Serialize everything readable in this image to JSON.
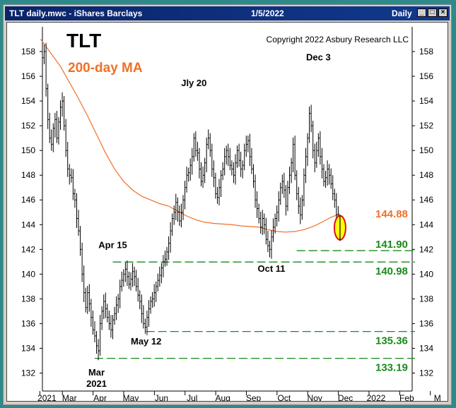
{
  "window": {
    "title_left": "TLT daily.mwc - iShares Barclays",
    "title_date": "1/5/2022",
    "title_period": "Daily",
    "buttons": [
      "_",
      "□",
      "×"
    ]
  },
  "chart_data": {
    "type": "line",
    "title": "TLT",
    "subtitle": "200-day MA",
    "copyright": "Copyright 2022 Asbury Research LLC",
    "ylim": [
      131,
      160
    ],
    "yticks": [
      132,
      134,
      136,
      138,
      140,
      142,
      144,
      146,
      148,
      150,
      152,
      154,
      156,
      158
    ],
    "xticks": [
      "2021",
      "Mar",
      "Apr",
      "May",
      "Jun",
      "Jul",
      "Aug",
      "Sep",
      "Oct",
      "Nov",
      "Dec",
      "2022",
      "Feb",
      "M"
    ],
    "colors": {
      "price": "#000000",
      "ma": "#f07028",
      "support": "#1a8a1a",
      "ma_label": "#f07028",
      "highlight_fill": "#ffff00",
      "highlight_stroke": "#e01010"
    },
    "price_series": [
      [
        0,
        157.5
      ],
      [
        2,
        158
      ],
      [
        4,
        155
      ],
      [
        6,
        152.5
      ],
      [
        8,
        151
      ],
      [
        10,
        150.5
      ],
      [
        12,
        151.8
      ],
      [
        14,
        152.5
      ],
      [
        16,
        151
      ],
      [
        18,
        152.3
      ],
      [
        20,
        153.5
      ],
      [
        22,
        154
      ],
      [
        24,
        152
      ],
      [
        26,
        150
      ],
      [
        28,
        148.5
      ],
      [
        30,
        148
      ],
      [
        32,
        147.8
      ],
      [
        34,
        146.5
      ],
      [
        36,
        146
      ],
      [
        38,
        144.5
      ],
      [
        40,
        143.5
      ],
      [
        42,
        142
      ],
      [
        44,
        140
      ],
      [
        46,
        138.5
      ],
      [
        48,
        137.3
      ],
      [
        50,
        138.5
      ],
      [
        52,
        137.6
      ],
      [
        54,
        136.5
      ],
      [
        56,
        135.5
      ],
      [
        58,
        135
      ],
      [
        60,
        134.2
      ],
      [
        62,
        133.8
      ],
      [
        64,
        136
      ],
      [
        66,
        137
      ],
      [
        68,
        137.8
      ],
      [
        70,
        137.2
      ],
      [
        72,
        136.5
      ],
      [
        74,
        136
      ],
      [
        76,
        135.5
      ],
      [
        78,
        136.3
      ],
      [
        80,
        136.8
      ],
      [
        82,
        137.5
      ],
      [
        84,
        138
      ],
      [
        86,
        139
      ],
      [
        88,
        139.5
      ],
      [
        90,
        140
      ],
      [
        92,
        140.4
      ],
      [
        94,
        139.8
      ],
      [
        96,
        139.2
      ],
      [
        98,
        139.6
      ],
      [
        100,
        140.2
      ],
      [
        102,
        139.8
      ],
      [
        104,
        139
      ],
      [
        106,
        138.3
      ],
      [
        108,
        137.8
      ],
      [
        110,
        136.8
      ],
      [
        112,
        136
      ],
      [
        114,
        135.7
      ],
      [
        116,
        136.5
      ],
      [
        118,
        137.2
      ],
      [
        120,
        137.8
      ],
      [
        122,
        138
      ],
      [
        124,
        138.5
      ],
      [
        126,
        139
      ],
      [
        128,
        139.5
      ],
      [
        130,
        139.9
      ],
      [
        132,
        140.5
      ],
      [
        134,
        141
      ],
      [
        136,
        141.2
      ],
      [
        138,
        141.8
      ],
      [
        140,
        142.5
      ],
      [
        142,
        143.5
      ],
      [
        144,
        144.5
      ],
      [
        146,
        145
      ],
      [
        148,
        145.8
      ],
      [
        150,
        145
      ],
      [
        152,
        144.3
      ],
      [
        154,
        145
      ],
      [
        156,
        146
      ],
      [
        158,
        147
      ],
      [
        160,
        148
      ],
      [
        162,
        148.2
      ],
      [
        164,
        148.8
      ],
      [
        166,
        149.5
      ],
      [
        168,
        151
      ],
      [
        170,
        150
      ],
      [
        172,
        149.8
      ],
      [
        174,
        148.5
      ],
      [
        176,
        147.5
      ],
      [
        178,
        148
      ],
      [
        180,
        149
      ],
      [
        182,
        150.5
      ],
      [
        184,
        151
      ],
      [
        186,
        150
      ],
      [
        188,
        148.5
      ],
      [
        190,
        147.8
      ],
      [
        192,
        146.5
      ],
      [
        194,
        146.2
      ],
      [
        196,
        147
      ],
      [
        198,
        148
      ],
      [
        200,
        148.5
      ],
      [
        202,
        149.5
      ],
      [
        204,
        150
      ],
      [
        206,
        149.5
      ],
      [
        208,
        148.8
      ],
      [
        210,
        148.5
      ],
      [
        212,
        148
      ],
      [
        214,
        149
      ],
      [
        216,
        150
      ],
      [
        218,
        149.2
      ],
      [
        220,
        148.5
      ],
      [
        222,
        148.8
      ],
      [
        224,
        150
      ],
      [
        226,
        150.5
      ],
      [
        228,
        150.8
      ],
      [
        230,
        149.5
      ],
      [
        232,
        148.5
      ],
      [
        234,
        147.5
      ],
      [
        236,
        146
      ],
      [
        238,
        145.3
      ],
      [
        240,
        144.5
      ],
      [
        242,
        143.8
      ],
      [
        244,
        144.5
      ],
      [
        246,
        144
      ],
      [
        248,
        142.8
      ],
      [
        250,
        142.3
      ],
      [
        252,
        142
      ],
      [
        254,
        143
      ],
      [
        256,
        143.8
      ],
      [
        258,
        144.5
      ],
      [
        260,
        145
      ],
      [
        262,
        146
      ],
      [
        264,
        147
      ],
      [
        266,
        147.5
      ],
      [
        268,
        146.8
      ],
      [
        270,
        145.5
      ],
      [
        272,
        147
      ],
      [
        274,
        148
      ],
      [
        276,
        149
      ],
      [
        278,
        150.5
      ],
      [
        280,
        148
      ],
      [
        282,
        146.5
      ],
      [
        284,
        145.5
      ],
      [
        286,
        144.8
      ],
      [
        288,
        146
      ],
      [
        290,
        148
      ],
      [
        292,
        149.5
      ],
      [
        294,
        151
      ],
      [
        296,
        153
      ],
      [
        298,
        152
      ],
      [
        300,
        150
      ],
      [
        302,
        149
      ],
      [
        304,
        150
      ],
      [
        306,
        151
      ],
      [
        308,
        149.5
      ],
      [
        310,
        148.5
      ],
      [
        312,
        147.5
      ],
      [
        314,
        147.8
      ],
      [
        316,
        148.5
      ],
      [
        318,
        148
      ],
      [
        320,
        147.3
      ],
      [
        322,
        146.5
      ],
      [
        324,
        146
      ],
      [
        326,
        144.8
      ],
      [
        328,
        143.5
      ],
      [
        330,
        143.2
      ]
    ],
    "ma_series": [
      [
        -2,
        159
      ],
      [
        10,
        157.8
      ],
      [
        20,
        156.8
      ],
      [
        30,
        155.5
      ],
      [
        40,
        154.2
      ],
      [
        50,
        152.8
      ],
      [
        60,
        151.3
      ],
      [
        70,
        149.8
      ],
      [
        80,
        148.5
      ],
      [
        90,
        147.5
      ],
      [
        100,
        146.8
      ],
      [
        110,
        146.3
      ],
      [
        120,
        146
      ],
      [
        130,
        145.7
      ],
      [
        140,
        145.5
      ],
      [
        150,
        145.1
      ],
      [
        160,
        144.7
      ],
      [
        170,
        144.4
      ],
      [
        180,
        144.2
      ],
      [
        190,
        144.1
      ],
      [
        200,
        144.05
      ],
      [
        210,
        144
      ],
      [
        220,
        143.9
      ],
      [
        230,
        143.85
      ],
      [
        240,
        143.8
      ],
      [
        250,
        143.6
      ],
      [
        260,
        143.45
      ],
      [
        270,
        143.4
      ],
      [
        280,
        143.45
      ],
      [
        290,
        143.6
      ],
      [
        300,
        143.85
      ],
      [
        310,
        144.2
      ],
      [
        320,
        144.6
      ],
      [
        330,
        144.88
      ]
    ],
    "support_levels": [
      {
        "value": 141.9,
        "label": "141.90"
      },
      {
        "value": 140.98,
        "label": "140.98"
      },
      {
        "value": 135.36,
        "label": "135.36"
      },
      {
        "value": 133.19,
        "label": "133.19"
      }
    ],
    "ma_value_label": "144.88",
    "annotations": [
      {
        "text": "Jly 20",
        "x": 168,
        "y": 155.2
      },
      {
        "text": "Dec 3",
        "x": 306,
        "y": 157.3
      },
      {
        "text": "Apr 15",
        "x": 78,
        "y": 142.1
      },
      {
        "text": "Oct 11",
        "x": 254,
        "y": 140.2
      },
      {
        "text": "May 12",
        "x": 115,
        "y": 134.3
      },
      {
        "text": "Mar",
        "x": 60,
        "y": 131.8
      },
      {
        "text": "2021",
        "x": 60,
        "y": 130.9
      }
    ],
    "highlight": {
      "x": 330,
      "low": 143,
      "high": 144.5
    }
  }
}
